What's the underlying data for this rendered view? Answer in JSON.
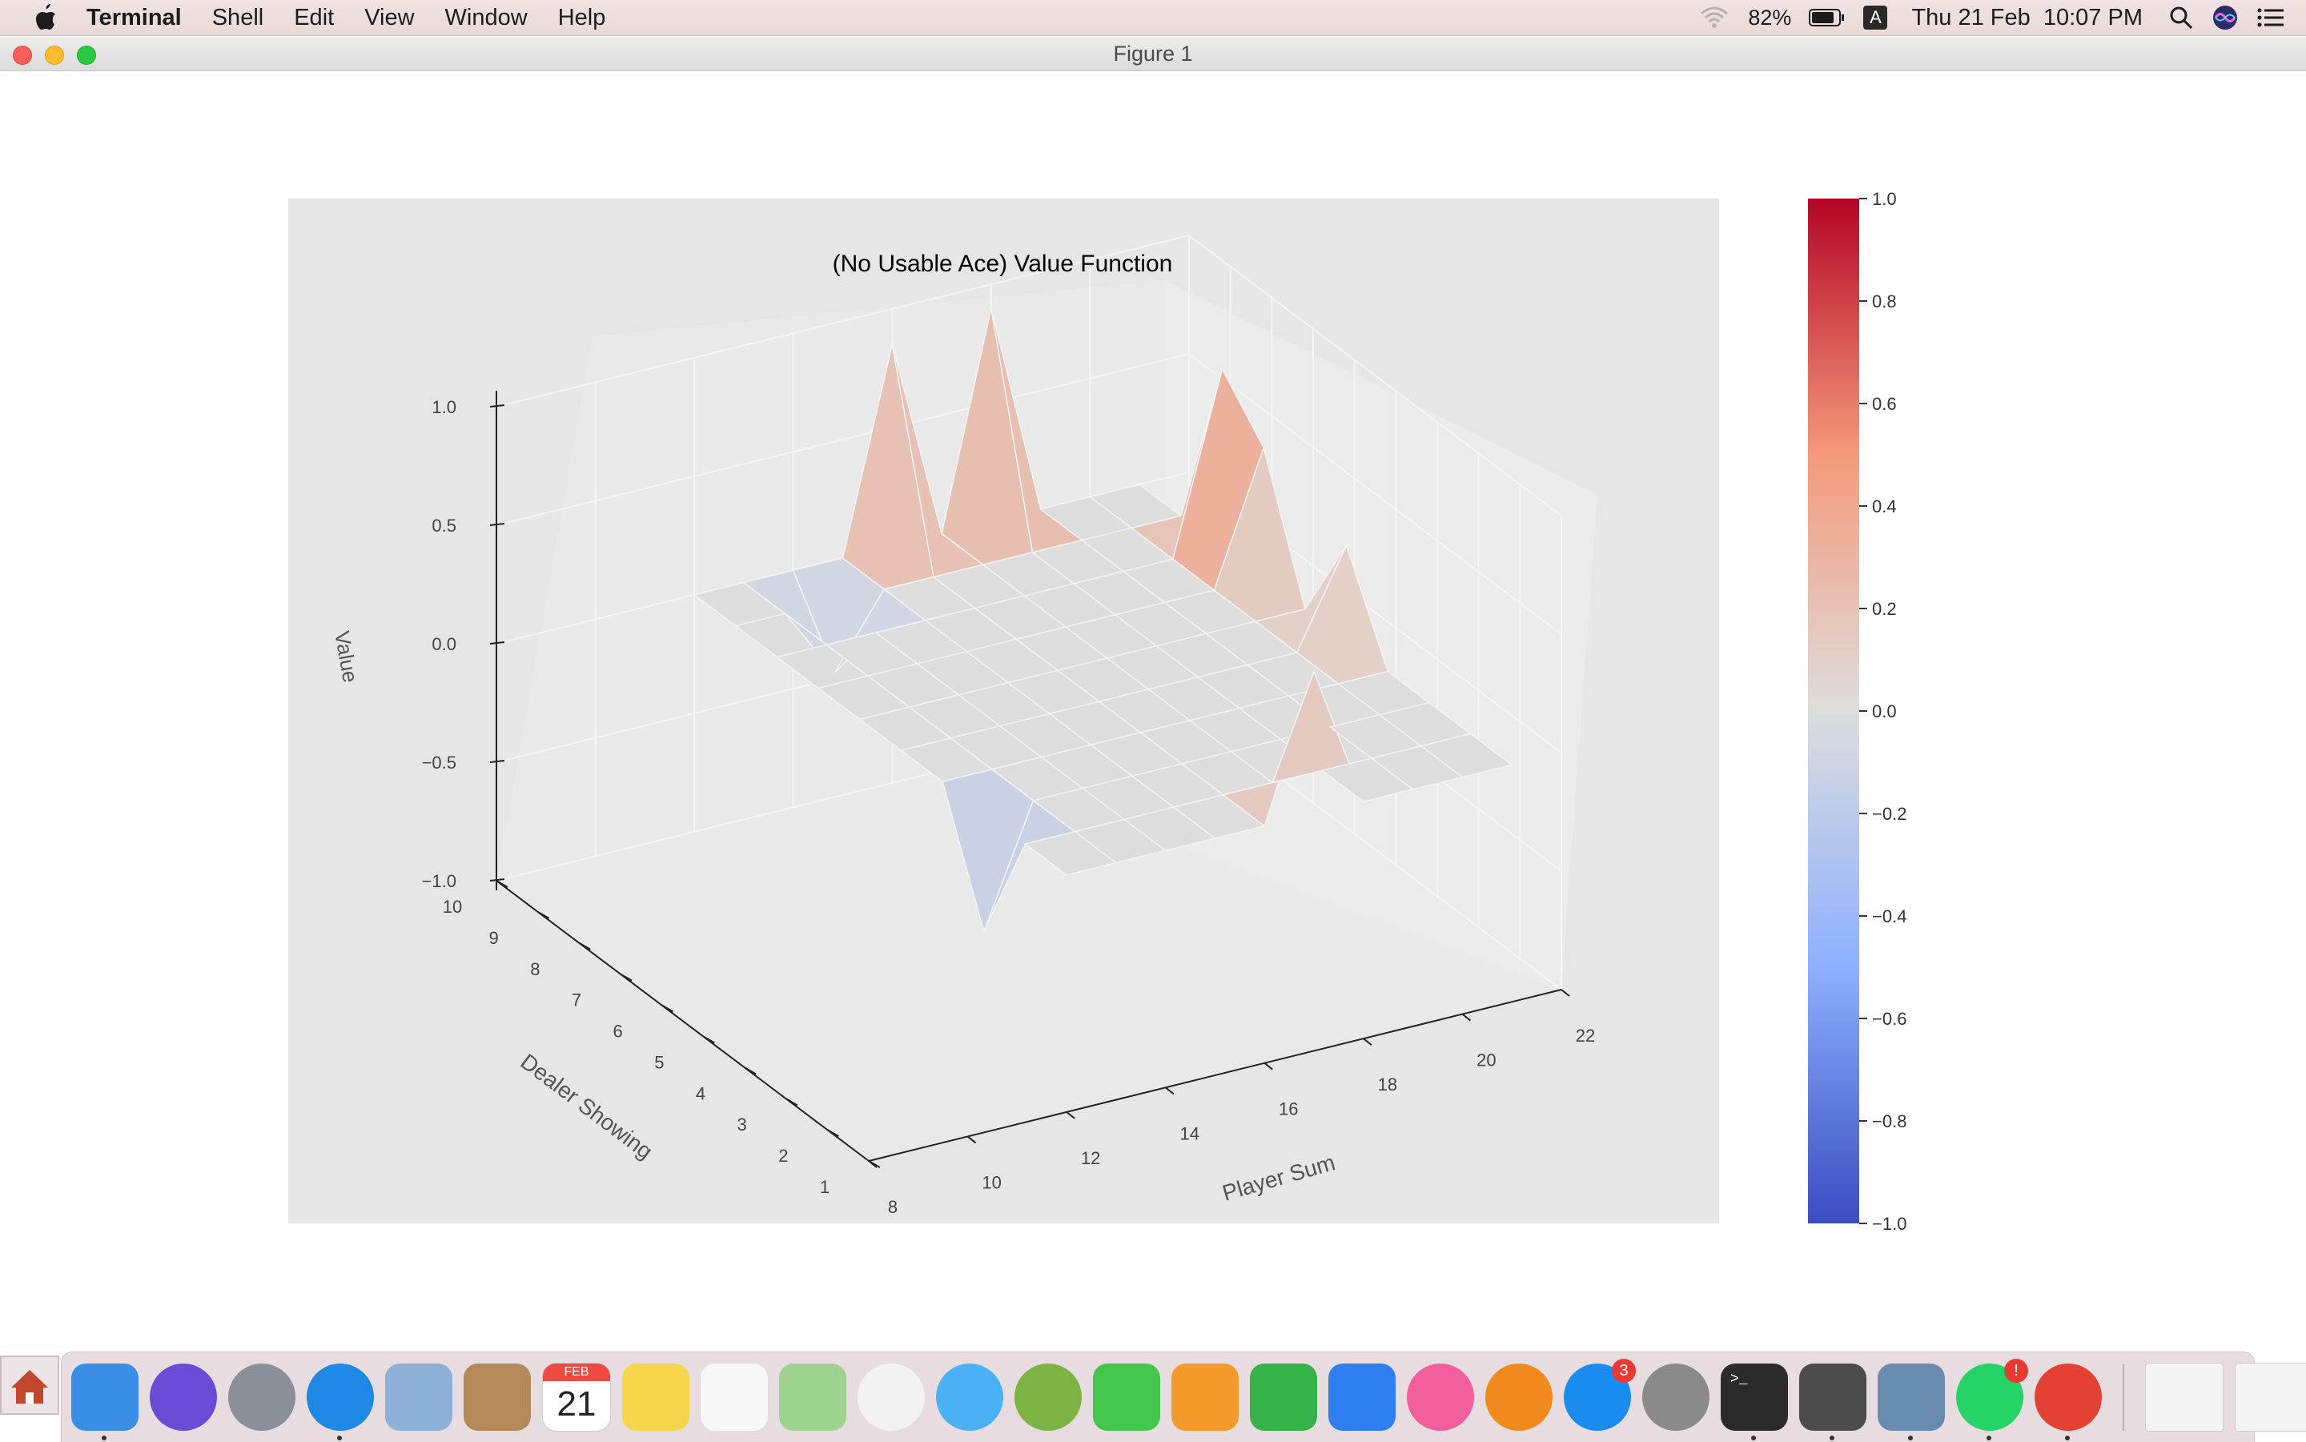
{
  "menubar": {
    "app_name": "Terminal",
    "items": [
      "Shell",
      "Edit",
      "View",
      "Window",
      "Help"
    ],
    "battery": "82%",
    "input_source": "A",
    "datetime": "Thu 21 Feb  10:07 PM"
  },
  "window": {
    "title": "Figure 1"
  },
  "chart_data": {
    "type": "surface3d",
    "title": "(No Usable Ace) Value Function",
    "xlabel": "Player Sum",
    "ylabel": "Dealer Showing",
    "zlabel": "Value",
    "x_ticks": [
      "8",
      "10",
      "12",
      "14",
      "16",
      "18",
      "20",
      "22"
    ],
    "y_ticks": [
      "1",
      "2",
      "3",
      "4",
      "5",
      "6",
      "7",
      "8",
      "9",
      "10"
    ],
    "z_ticks": [
      "−1.0",
      "−0.5",
      "0.0",
      "0.5",
      "1.0"
    ],
    "zlim": [
      -1.0,
      1.0
    ],
    "colormap": "coolwarm",
    "colorbar_ticks": [
      "1.0",
      "0.8",
      "0.6",
      "0.4",
      "0.2",
      "0.0",
      "−0.2",
      "−0.4",
      "−0.6",
      "−0.8",
      "−1.0"
    ],
    "colorbar_range": [
      -1.0,
      1.0
    ],
    "player_sum": [
      12,
      13,
      14,
      15,
      16,
      17,
      18,
      19,
      20,
      21
    ],
    "dealer_showing": [
      1,
      2,
      3,
      4,
      5,
      6,
      7,
      8,
      9,
      10
    ],
    "peaks": [
      {
        "player_sum": 16,
        "dealer_showing": 10,
        "value": 0.85
      },
      {
        "player_sum": 18,
        "dealer_showing": 10,
        "value": 0.9
      },
      {
        "player_sum": 17,
        "dealer_showing": 1,
        "value": 0.6
      },
      {
        "player_sum": 21,
        "dealer_showing": 8,
        "value": 0.75
      },
      {
        "player_sum": 21,
        "dealer_showing": 7,
        "value": 0.55
      },
      {
        "player_sum": 21,
        "dealer_showing": 5,
        "value": 0.4
      },
      {
        "player_sum": 14,
        "dealer_showing": 9,
        "value": -0.3
      },
      {
        "player_sum": 12,
        "dealer_showing": 3,
        "value": -0.5
      }
    ],
    "base_value": 0.0
  },
  "dock": {
    "calendar_month": "FEB",
    "calendar_day": "21",
    "appstore_badge": "3",
    "whatsapp_badge": "!",
    "colors": {
      "finder": "#3a8ee6",
      "siri": "#6a4bd6",
      "launchpad": "#8a8f98",
      "safari": "#1e88e5",
      "mail": "#8fb0d8",
      "contacts": "#b48a5a",
      "calendar": "#ffffff",
      "notes": "#f5d64a",
      "reminders": "#f7f7f7",
      "maps": "#9fd18f",
      "photos": "#f2f2f2",
      "messages": "#4bb1f5",
      "android": "#7cb342",
      "facetime": "#43c64b",
      "pages": "#f39a2b",
      "numbers": "#36b24a",
      "keynote": "#2f7ff0",
      "itunes": "#f25d9c",
      "books": "#f08a1c",
      "appstore": "#1a8cf0",
      "preferences": "#8a8a8a",
      "terminal": "#2b2b2b",
      "sublime": "#4b4b4b",
      "preview": "#6a8bb0",
      "whatsapp": "#25d366",
      "chrome": "#e34133",
      "trash": "#d8d8d8"
    }
  }
}
